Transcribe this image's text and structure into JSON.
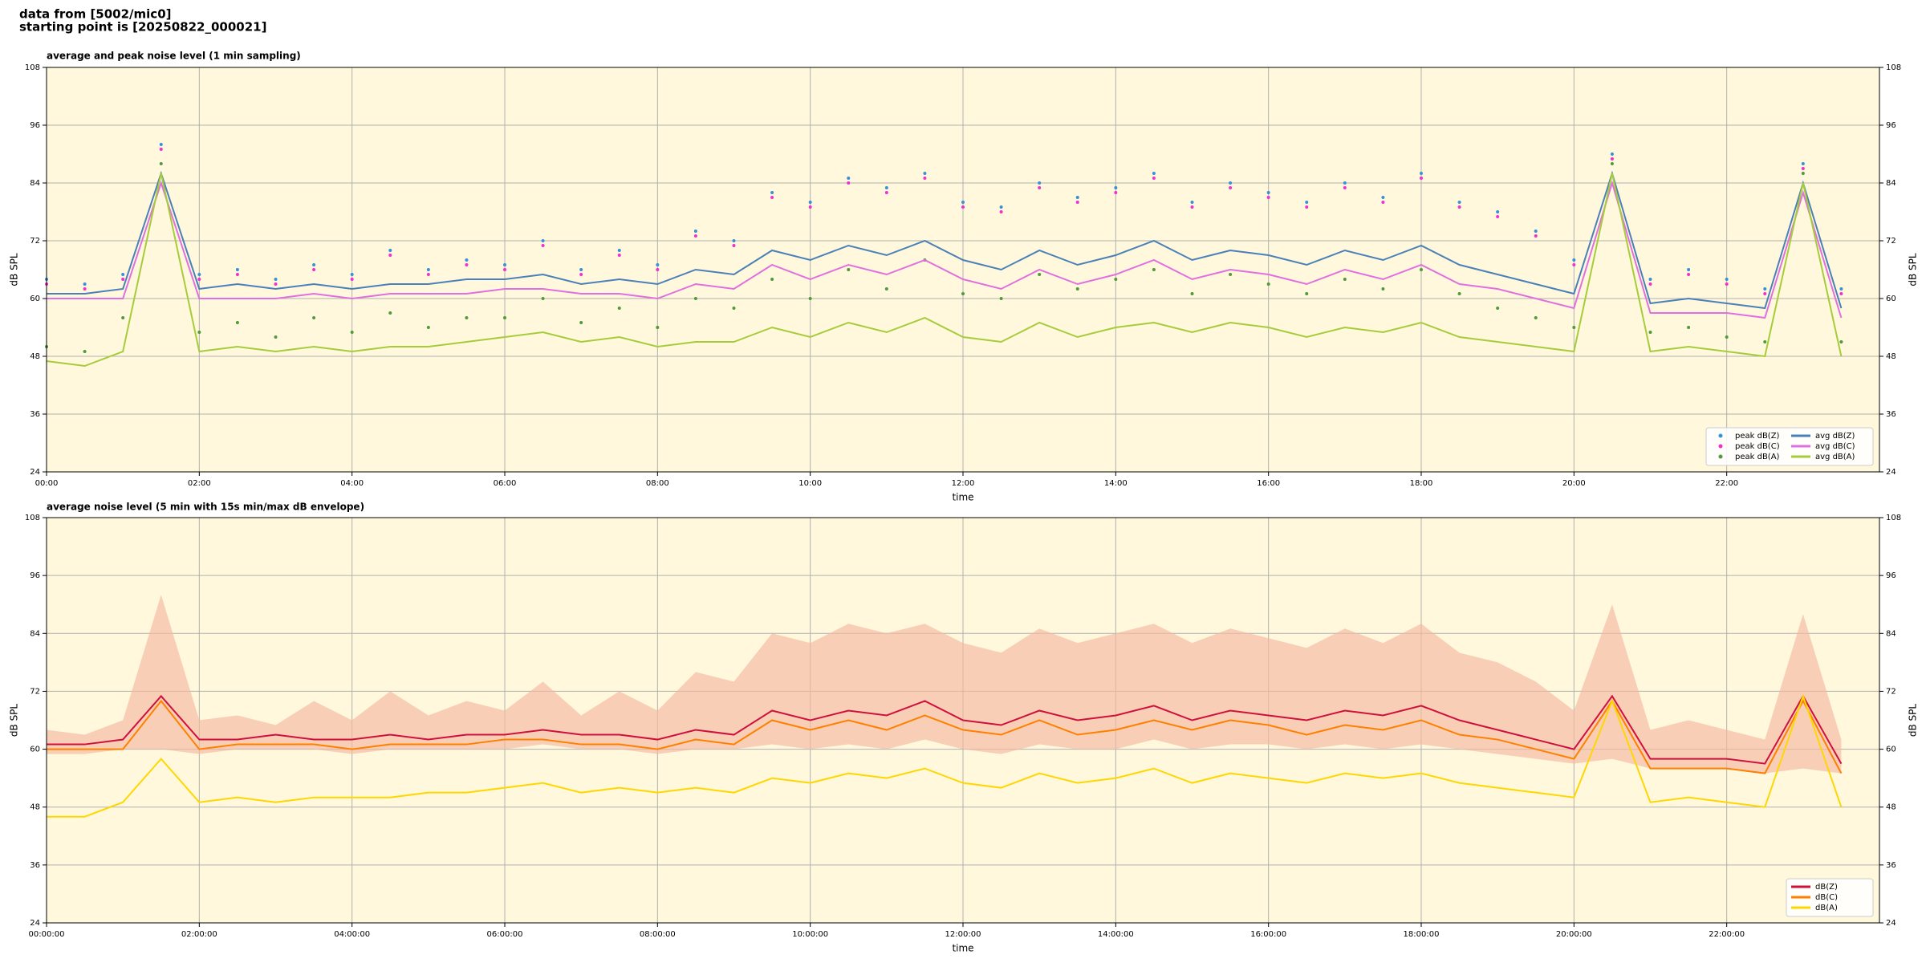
{
  "title": [
    "data from [5002/mic0]",
    "starting point is [20250822_000021]"
  ],
  "chart_data": [
    {
      "type": "line",
      "title": "average and peak noise level (1 min sampling)",
      "xlabel": "time",
      "ylabel": "dB SPL",
      "x": [
        0,
        0.5,
        1,
        1.5,
        2,
        2.5,
        3,
        3.5,
        4,
        4.5,
        5,
        5.5,
        6,
        6.5,
        7,
        7.5,
        8,
        8.5,
        9,
        9.5,
        10,
        10.5,
        11,
        11.5,
        12,
        12.5,
        13,
        13.5,
        14,
        14.5,
        15,
        15.5,
        16,
        16.5,
        17,
        17.5,
        18,
        18.5,
        19,
        19.5,
        20,
        20.5,
        21,
        21.5,
        22,
        22.5,
        23,
        23.5
      ],
      "xlim": [
        0,
        24
      ],
      "ylim": [
        24,
        108
      ],
      "yticks": [
        24,
        36,
        48,
        60,
        72,
        84,
        96,
        108
      ],
      "xticks": [
        {
          "value": 0,
          "label": "00:00"
        },
        {
          "value": 2,
          "label": "02:00"
        },
        {
          "value": 4,
          "label": "04:00"
        },
        {
          "value": 6,
          "label": "06:00"
        },
        {
          "value": 8,
          "label": "08:00"
        },
        {
          "value": 10,
          "label": "10:00"
        },
        {
          "value": 12,
          "label": "12:00"
        },
        {
          "value": 14,
          "label": "14:00"
        },
        {
          "value": 16,
          "label": "16:00"
        },
        {
          "value": 18,
          "label": "18:00"
        },
        {
          "value": 20,
          "label": "20:00"
        },
        {
          "value": 22,
          "label": "22:00"
        }
      ],
      "grid": true,
      "legend": "lower right",
      "legend_columns": 2,
      "series": [
        {
          "name": "peak dB(Z)",
          "type": "scatter",
          "color": "#3b8fd6",
          "values": [
            64,
            63,
            65,
            92,
            65,
            66,
            64,
            67,
            65,
            70,
            66,
            68,
            67,
            72,
            66,
            70,
            67,
            74,
            72,
            82,
            80,
            85,
            83,
            86,
            80,
            79,
            84,
            81,
            83,
            86,
            80,
            84,
            82,
            80,
            84,
            81,
            86,
            80,
            78,
            74,
            68,
            90,
            64,
            66,
            64,
            62,
            88,
            62
          ]
        },
        {
          "name": "peak dB(C)",
          "type": "scatter",
          "color": "#f030d0",
          "values": [
            63,
            62,
            64,
            91,
            64,
            65,
            63,
            66,
            64,
            69,
            65,
            67,
            66,
            71,
            65,
            69,
            66,
            73,
            71,
            81,
            79,
            84,
            82,
            85,
            79,
            78,
            83,
            80,
            82,
            85,
            79,
            83,
            81,
            79,
            83,
            80,
            85,
            79,
            77,
            73,
            67,
            89,
            63,
            65,
            63,
            61,
            87,
            61
          ]
        },
        {
          "name": "peak dB(A)",
          "type": "scatter",
          "color": "#4f9a3a",
          "values": [
            50,
            49,
            56,
            88,
            53,
            55,
            52,
            56,
            53,
            57,
            54,
            56,
            56,
            60,
            55,
            58,
            54,
            60,
            58,
            64,
            60,
            66,
            62,
            68,
            61,
            60,
            65,
            62,
            64,
            66,
            61,
            65,
            63,
            61,
            64,
            62,
            66,
            61,
            58,
            56,
            54,
            88,
            53,
            54,
            52,
            51,
            86,
            51
          ]
        },
        {
          "name": "avg dB(Z)",
          "type": "line",
          "color": "#4a80b8",
          "values": [
            61,
            61,
            62,
            86,
            62,
            63,
            62,
            63,
            62,
            63,
            63,
            64,
            64,
            65,
            63,
            64,
            63,
            66,
            65,
            70,
            68,
            71,
            69,
            72,
            68,
            66,
            70,
            67,
            69,
            72,
            68,
            70,
            69,
            67,
            70,
            68,
            71,
            67,
            65,
            63,
            61,
            86,
            59,
            60,
            59,
            58,
            84,
            58
          ]
        },
        {
          "name": "avg dB(C)",
          "type": "line",
          "color": "#e070e0",
          "values": [
            60,
            60,
            60,
            84,
            60,
            60,
            60,
            61,
            60,
            61,
            61,
            61,
            62,
            62,
            61,
            61,
            60,
            63,
            62,
            67,
            64,
            67,
            65,
            68,
            64,
            62,
            66,
            63,
            65,
            68,
            64,
            66,
            65,
            63,
            66,
            64,
            67,
            63,
            62,
            60,
            58,
            84,
            57,
            57,
            57,
            56,
            82,
            56
          ]
        },
        {
          "name": "avg dB(A)",
          "type": "line",
          "color": "#a6cc3c",
          "values": [
            47,
            46,
            49,
            86,
            49,
            50,
            49,
            50,
            49,
            50,
            50,
            51,
            52,
            53,
            51,
            52,
            50,
            51,
            51,
            54,
            52,
            55,
            53,
            56,
            52,
            51,
            55,
            52,
            54,
            55,
            53,
            55,
            54,
            52,
            54,
            53,
            55,
            52,
            51,
            50,
            49,
            86,
            49,
            50,
            49,
            48,
            84,
            48
          ]
        }
      ]
    },
    {
      "type": "line",
      "title": "average noise level (5 min with 15s min/max dB envelope)",
      "xlabel": "time",
      "ylabel": "dB SPL",
      "x": [
        0,
        0.5,
        1,
        1.5,
        2,
        2.5,
        3,
        3.5,
        4,
        4.5,
        5,
        5.5,
        6,
        6.5,
        7,
        7.5,
        8,
        8.5,
        9,
        9.5,
        10,
        10.5,
        11,
        11.5,
        12,
        12.5,
        13,
        13.5,
        14,
        14.5,
        15,
        15.5,
        16,
        16.5,
        17,
        17.5,
        18,
        18.5,
        19,
        19.5,
        20,
        20.5,
        21,
        21.5,
        22,
        22.5,
        23,
        23.5
      ],
      "xlim": [
        0,
        24
      ],
      "ylim": [
        24,
        108
      ],
      "yticks": [
        24,
        36,
        48,
        60,
        72,
        84,
        96,
        108
      ],
      "xticks": [
        {
          "value": 0,
          "label": "00:00:00"
        },
        {
          "value": 2,
          "label": "02:00:00"
        },
        {
          "value": 4,
          "label": "04:00:00"
        },
        {
          "value": 6,
          "label": "06:00:00"
        },
        {
          "value": 8,
          "label": "08:00:00"
        },
        {
          "value": 10,
          "label": "10:00:00"
        },
        {
          "value": 12,
          "label": "12:00:00"
        },
        {
          "value": 14,
          "label": "14:00:00"
        },
        {
          "value": 16,
          "label": "16:00:00"
        },
        {
          "value": 18,
          "label": "18:00:00"
        },
        {
          "value": 20,
          "label": "20:00:00"
        },
        {
          "value": 22,
          "label": "22:00:00"
        }
      ],
      "grid": true,
      "legend": "lower right",
      "legend_columns": 1,
      "envelope": {
        "color": "#f5b9a2",
        "min": [
          59,
          59,
          60,
          60,
          59,
          60,
          60,
          60,
          59,
          60,
          60,
          60,
          60,
          61,
          60,
          60,
          59,
          60,
          60,
          61,
          60,
          61,
          60,
          62,
          60,
          59,
          61,
          60,
          60,
          62,
          60,
          61,
          61,
          60,
          61,
          60,
          61,
          60,
          59,
          58,
          57,
          58,
          56,
          56,
          56,
          55,
          56,
          55
        ],
        "max": [
          64,
          63,
          66,
          92,
          66,
          67,
          65,
          70,
          66,
          72,
          67,
          70,
          68,
          74,
          67,
          72,
          68,
          76,
          74,
          84,
          82,
          86,
          84,
          86,
          82,
          80,
          85,
          82,
          84,
          86,
          82,
          85,
          83,
          81,
          85,
          82,
          86,
          80,
          78,
          74,
          68,
          90,
          64,
          66,
          64,
          62,
          88,
          62
        ]
      },
      "series": [
        {
          "name": "dB(Z)",
          "type": "line",
          "color": "#d0103c",
          "values": [
            61,
            61,
            62,
            71,
            62,
            62,
            63,
            62,
            62,
            63,
            62,
            63,
            63,
            64,
            63,
            63,
            62,
            64,
            63,
            68,
            66,
            68,
            67,
            70,
            66,
            65,
            68,
            66,
            67,
            69,
            66,
            68,
            67,
            66,
            68,
            67,
            69,
            66,
            64,
            62,
            60,
            71,
            58,
            58,
            58,
            57,
            71,
            57
          ]
        },
        {
          "name": "dB(C)",
          "type": "line",
          "color": "#ff8000",
          "values": [
            60,
            60,
            60,
            70,
            60,
            61,
            61,
            61,
            60,
            61,
            61,
            61,
            62,
            62,
            61,
            61,
            60,
            62,
            61,
            66,
            64,
            66,
            64,
            67,
            64,
            63,
            66,
            63,
            64,
            66,
            64,
            66,
            65,
            63,
            65,
            64,
            66,
            63,
            62,
            60,
            58,
            70,
            56,
            56,
            56,
            55,
            70,
            55
          ]
        },
        {
          "name": "dB(A)",
          "type": "line",
          "color": "#ffd700",
          "values": [
            46,
            46,
            49,
            58,
            49,
            50,
            49,
            50,
            50,
            50,
            51,
            51,
            52,
            53,
            51,
            52,
            51,
            52,
            51,
            54,
            53,
            55,
            54,
            56,
            53,
            52,
            55,
            53,
            54,
            56,
            53,
            55,
            54,
            53,
            55,
            54,
            55,
            53,
            52,
            51,
            50,
            70,
            49,
            50,
            49,
            48,
            71,
            48
          ]
        }
      ]
    }
  ]
}
